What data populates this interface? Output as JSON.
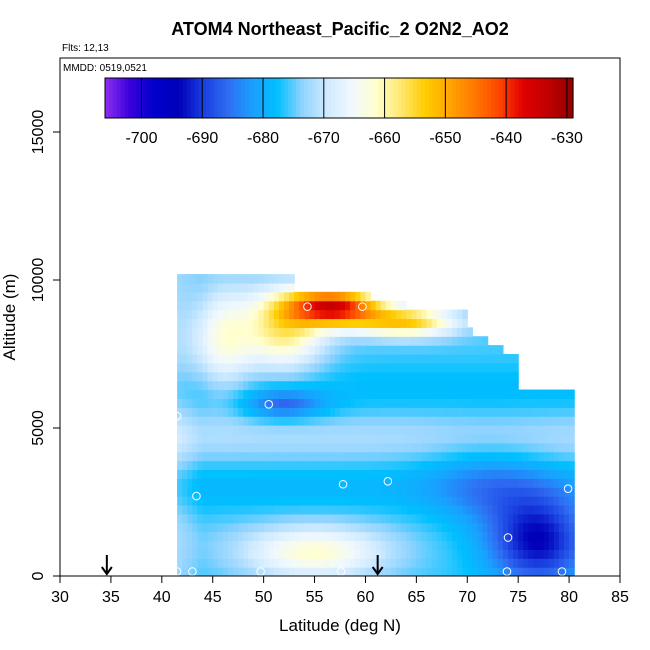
{
  "chart_data": {
    "type": "heatmap",
    "title": "ATOM4 Northeast_Pacific_2 O2N2_AO2",
    "flights_label": "Flts: 12,13",
    "dates_label": "MMDD: 0519,0521",
    "xlabel": "Latitude (deg N)",
    "ylabel": "Altitude (m)",
    "xlim": [
      30,
      85
    ],
    "ylim": [
      0,
      17500
    ],
    "xticks": [
      "30",
      "35",
      "40",
      "45",
      "50",
      "55",
      "60",
      "65",
      "70",
      "75",
      "80",
      "85"
    ],
    "yticks": [
      "0",
      "5000",
      "10000",
      "15000"
    ],
    "colorbar": {
      "range": [
        -706,
        -629
      ],
      "ticks": [
        "-700",
        "-690",
        "-680",
        "-670",
        "-660",
        "-650",
        "-640",
        "-630"
      ],
      "tick_values": [
        -700,
        -690,
        -680,
        -670,
        -660,
        -650,
        -640,
        -630
      ],
      "palette": [
        "#8e2ef0",
        "#3a00dd",
        "#0000cd",
        "#0000b8",
        "#1a3fe0",
        "#2f6df2",
        "#1aa0ff",
        "#00c0ff",
        "#8fd3ff",
        "#cfeaff",
        "#f0f8ff",
        "#ffffd0",
        "#ffe870",
        "#ffcc00",
        "#ffa500",
        "#ff7800",
        "#ff4500",
        "#e00000",
        "#c00000",
        "#900000"
      ],
      "position": "top, inside plot"
    },
    "grid": false,
    "arrows_at_latitude": [
      34.6,
      61.2
    ],
    "observations": [
      {
        "lat": 41.5,
        "alt": 5400
      },
      {
        "lat": 43.4,
        "alt": 2700
      },
      {
        "lat": 50.5,
        "alt": 5800
      },
      {
        "lat": 54.3,
        "alt": 9100
      },
      {
        "lat": 59.7,
        "alt": 9100
      },
      {
        "lat": 57.8,
        "alt": 3100
      },
      {
        "lat": 62.2,
        "alt": 3200
      },
      {
        "lat": 74.0,
        "alt": 1300
      },
      {
        "lat": 79.9,
        "alt": 2950
      },
      {
        "lat": 41.5,
        "alt": 150
      },
      {
        "lat": 43.0,
        "alt": 150
      },
      {
        "lat": 49.7,
        "alt": 150
      },
      {
        "lat": 57.6,
        "alt": 150
      },
      {
        "lat": 73.9,
        "alt": 150
      },
      {
        "lat": 79.3,
        "alt": 150
      }
    ]
  }
}
